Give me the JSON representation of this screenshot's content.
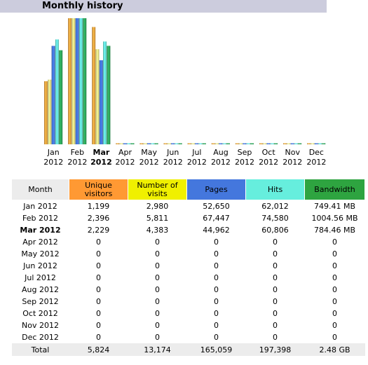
{
  "section_title": "Monthly history",
  "chart_data": {
    "type": "bar",
    "categories": [
      "Jan 2012",
      "Feb 2012",
      "Mar 2012",
      "Apr 2012",
      "May 2012",
      "Jun 2012",
      "Jul 2012",
      "Aug 2012",
      "Sep 2012",
      "Oct 2012",
      "Nov 2012",
      "Dec 2012"
    ],
    "category_month": [
      "Jan",
      "Feb",
      "Mar",
      "Apr",
      "May",
      "Jun",
      "Jul",
      "Aug",
      "Sep",
      "Oct",
      "Nov",
      "Dec"
    ],
    "category_year": [
      "2012",
      "2012",
      "2012",
      "2012",
      "2012",
      "2012",
      "2012",
      "2012",
      "2012",
      "2012",
      "2012",
      "2012"
    ],
    "current_index": 2,
    "series": [
      {
        "name": "Unique visitors",
        "color": "#f4a640",
        "values": [
          1199,
          2396,
          2229,
          0,
          0,
          0,
          0,
          0,
          0,
          0,
          0,
          0
        ]
      },
      {
        "name": "Number of visits",
        "color": "#f0ee88",
        "values": [
          2980,
          5811,
          4383,
          0,
          0,
          0,
          0,
          0,
          0,
          0,
          0,
          0
        ]
      },
      {
        "name": "Pages",
        "color": "#4477dd",
        "values": [
          52650,
          67447,
          44962,
          0,
          0,
          0,
          0,
          0,
          0,
          0,
          0,
          0
        ]
      },
      {
        "name": "Hits",
        "color": "#66eedd",
        "values": [
          62012,
          74580,
          60806,
          0,
          0,
          0,
          0,
          0,
          0,
          0,
          0,
          0
        ]
      },
      {
        "name": "Bandwidth",
        "color": "#2ea85c",
        "values": [
          749.41,
          1004.56,
          784.46,
          0,
          0,
          0,
          0,
          0,
          0,
          0,
          0,
          0
        ]
      }
    ]
  },
  "table": {
    "headers": [
      {
        "label": "Month",
        "bg": "#ececec"
      },
      {
        "label": "Unique visitors",
        "bg": "#ff9933"
      },
      {
        "label": "Number of visits",
        "bg": "#f0f000"
      },
      {
        "label": "Pages",
        "bg": "#4477dd"
      },
      {
        "label": "Hits",
        "bg": "#66eedd"
      },
      {
        "label": "Bandwidth",
        "bg": "#2ea440"
      }
    ],
    "rows": [
      [
        "Jan 2012",
        "1,199",
        "2,980",
        "52,650",
        "62,012",
        "749.41 MB"
      ],
      [
        "Feb 2012",
        "2,396",
        "5,811",
        "67,447",
        "74,580",
        "1004.56 MB"
      ],
      [
        "Mar 2012",
        "2,229",
        "4,383",
        "44,962",
        "60,806",
        "784.46 MB"
      ],
      [
        "Apr 2012",
        "0",
        "0",
        "0",
        "0",
        "0"
      ],
      [
        "May 2012",
        "0",
        "0",
        "0",
        "0",
        "0"
      ],
      [
        "Jun 2012",
        "0",
        "0",
        "0",
        "0",
        "0"
      ],
      [
        "Jul 2012",
        "0",
        "0",
        "0",
        "0",
        "0"
      ],
      [
        "Aug 2012",
        "0",
        "0",
        "0",
        "0",
        "0"
      ],
      [
        "Sep 2012",
        "0",
        "0",
        "0",
        "0",
        "0"
      ],
      [
        "Oct 2012",
        "0",
        "0",
        "0",
        "0",
        "0"
      ],
      [
        "Nov 2012",
        "0",
        "0",
        "0",
        "0",
        "0"
      ],
      [
        "Dec 2012",
        "0",
        "0",
        "0",
        "0",
        "0"
      ]
    ],
    "total": [
      "Total",
      "5,824",
      "13,174",
      "165,059",
      "197,398",
      "2.48 GB"
    ],
    "bold_row_index": 2
  }
}
